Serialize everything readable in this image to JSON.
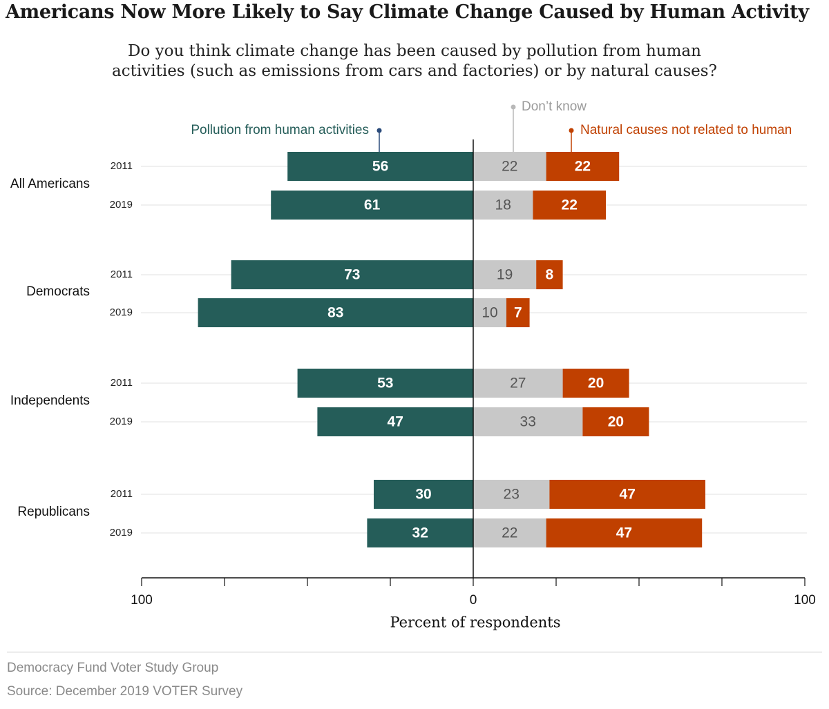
{
  "title": "Americans Now More Likely to Say Climate Change Caused by Human Activity",
  "subtitle": [
    "Do you think climate change has been caused by pollution from human",
    "activities (such as emissions from cars and factories) or by natural causes?"
  ],
  "footer": {
    "org": "Democracy Fund Voter Study Group",
    "source": "Source: December 2019 VOTER Survey"
  },
  "chart_data": {
    "type": "bar",
    "orientation": "horizontal-diverging-stacked",
    "xlabel": "Percent of respondents",
    "xlim": [
      -100,
      100
    ],
    "x_tick_labels": [
      "100",
      "0",
      "100"
    ],
    "grid": true,
    "colors": {
      "human": "#255d59",
      "dont_know": "#c8c8c8",
      "natural": "#c04000",
      "label_human": "#ffffff",
      "label_dont_know": "#555555",
      "label_natural": "#ffffff"
    },
    "series": [
      {
        "key": "human",
        "name": "Pollution from human activities",
        "side": "left"
      },
      {
        "key": "dont_know",
        "name": "Don’t know",
        "side": "right"
      },
      {
        "key": "natural",
        "name": "Natural causes not related to human",
        "side": "right"
      }
    ],
    "groups": [
      {
        "name": "All Americans",
        "rows": [
          {
            "year": "2011",
            "human": 56,
            "dont_know": 22,
            "natural": 22
          },
          {
            "year": "2019",
            "human": 61,
            "dont_know": 18,
            "natural": 22
          }
        ]
      },
      {
        "name": "Democrats",
        "rows": [
          {
            "year": "2011",
            "human": 73,
            "dont_know": 19,
            "natural": 8
          },
          {
            "year": "2019",
            "human": 83,
            "dont_know": 10,
            "natural": 7
          }
        ]
      },
      {
        "name": "Independents",
        "rows": [
          {
            "year": "2011",
            "human": 53,
            "dont_know": 27,
            "natural": 20
          },
          {
            "year": "2019",
            "human": 47,
            "dont_know": 33,
            "natural": 20
          }
        ]
      },
      {
        "name": "Republicans",
        "rows": [
          {
            "year": "2011",
            "human": 30,
            "dont_know": 23,
            "natural": 47
          },
          {
            "year": "2019",
            "human": 32,
            "dont_know": 22,
            "natural": 47
          }
        ]
      }
    ]
  }
}
